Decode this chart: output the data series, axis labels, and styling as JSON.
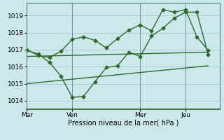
{
  "background_color": "#cce8ea",
  "grid_color": "#aacccc",
  "line_color": "#2d6a2d",
  "xlabel": "Pression niveau de la mer( hPa )",
  "ylim": [
    1013.5,
    1019.75
  ],
  "yticks": [
    1014,
    1015,
    1016,
    1017,
    1018,
    1019
  ],
  "xtick_labels": [
    "Mar",
    "Ven",
    "Mer",
    "Jeu"
  ],
  "xtick_positions": [
    0,
    4,
    10,
    14
  ],
  "xlim": [
    0,
    17
  ],
  "series1_x": [
    0,
    1,
    2,
    3,
    4,
    5,
    6,
    7,
    8,
    9,
    10,
    11,
    12,
    13,
    14,
    15,
    16
  ],
  "series1_y": [
    1016.95,
    1016.75,
    1016.25,
    1015.45,
    1014.2,
    1014.25,
    1015.1,
    1015.95,
    1016.05,
    1016.85,
    1016.6,
    1017.8,
    1018.25,
    1018.85,
    1019.2,
    1019.2,
    1016.7
  ],
  "series2_x": [
    0,
    1,
    2,
    3,
    4,
    5,
    6,
    7,
    8,
    9,
    10,
    11,
    12,
    13,
    14,
    15,
    16
  ],
  "series2_y": [
    1017.0,
    1016.65,
    1016.55,
    1016.9,
    1017.6,
    1017.75,
    1017.55,
    1017.1,
    1017.65,
    1018.15,
    1018.45,
    1018.1,
    1019.35,
    1019.2,
    1019.35,
    1017.75,
    1016.95
  ],
  "series3_x": [
    0,
    16
  ],
  "series3_y": [
    1016.6,
    1016.85
  ],
  "series4_x": [
    0,
    16
  ],
  "series4_y": [
    1015.0,
    1016.05
  ],
  "vline_x": [
    4,
    10,
    14
  ],
  "marker_style": "D",
  "marker_size": 2.5,
  "linewidth": 1.0,
  "label_fontsize": 6.5,
  "xlabel_fontsize": 7
}
